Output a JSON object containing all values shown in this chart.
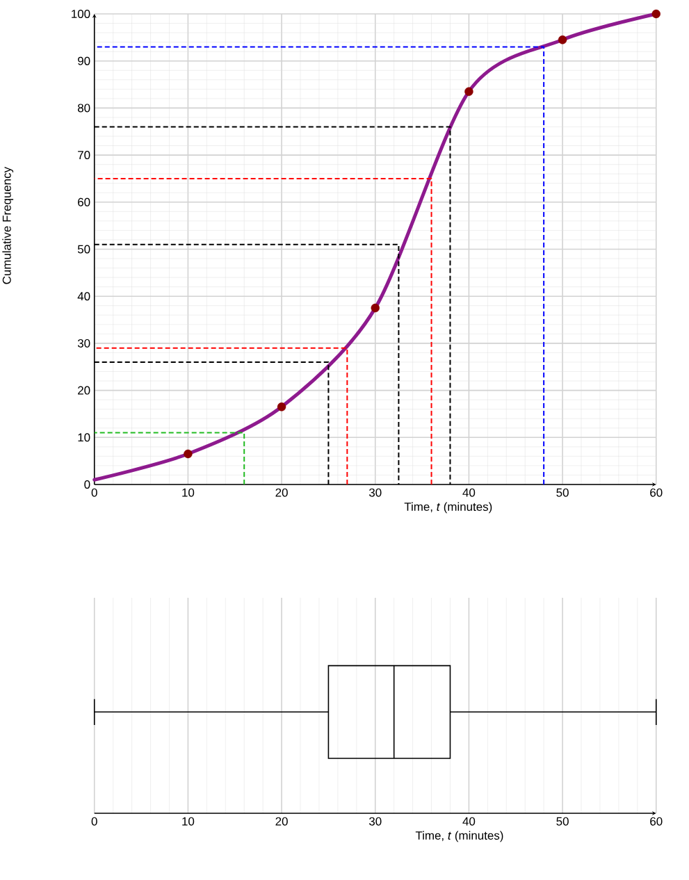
{
  "chart_data": [
    {
      "type": "line",
      "xlabel": "Time, *t* (minutes)",
      "ylabel": "Cumulative Frequency",
      "xlim": [
        0,
        60
      ],
      "ylim": [
        0,
        100
      ],
      "xticks": [
        0,
        10,
        20,
        30,
        40,
        50,
        60
      ],
      "yticks": [
        0,
        10,
        20,
        30,
        40,
        50,
        60,
        70,
        80,
        90,
        100
      ],
      "grid": true,
      "series": [
        {
          "type": "line",
          "x": [
            0,
            10,
            20,
            30,
            40,
            50,
            60
          ],
          "values": [
            1,
            6.5,
            16.5,
            37.5,
            83.5,
            94.5,
            100
          ],
          "color": "#8e1a8e",
          "marker": "none",
          "line_style": "solid"
        },
        {
          "type": "scatter",
          "x": [
            10,
            20,
            30,
            40,
            50,
            60
          ],
          "values": [
            6.5,
            16.5,
            37.5,
            83.5,
            94.5,
            100
          ],
          "color": "#8b0000",
          "marker": "circle"
        },
        {
          "type": "line",
          "x": [
            0,
            25,
            25
          ],
          "values": [
            26,
            26,
            0
          ],
          "color": "#000000",
          "marker": "none",
          "line_style": "dashed"
        },
        {
          "type": "line",
          "x": [
            0,
            32.5,
            32.5
          ],
          "values": [
            51,
            51,
            0
          ],
          "color": "#000000",
          "marker": "none",
          "line_style": "dashed"
        },
        {
          "type": "line",
          "x": [
            0,
            38,
            38
          ],
          "values": [
            76,
            76,
            0
          ],
          "color": "#000000",
          "marker": "none",
          "line_style": "dashed"
        },
        {
          "type": "line",
          "x": [
            27,
            27,
            0
          ],
          "values": [
            0,
            29,
            29
          ],
          "color": "#ff0000",
          "marker": "none",
          "line_style": "dashed"
        },
        {
          "type": "line",
          "x": [
            36,
            36,
            0
          ],
          "values": [
            0,
            65,
            65
          ],
          "color": "#ff0000",
          "marker": "none",
          "line_style": "dashed"
        },
        {
          "type": "line",
          "x": [
            16,
            16,
            0
          ],
          "values": [
            0,
            11,
            11
          ],
          "color": "#22bb22",
          "marker": "none",
          "line_style": "dashed"
        },
        {
          "type": "line",
          "x": [
            48,
            48,
            0
          ],
          "values": [
            0,
            93,
            93
          ],
          "color": "#0000ff",
          "marker": "none",
          "line_style": "dashed"
        }
      ]
    },
    {
      "type": "box",
      "orientation": "horizontal",
      "xlabel": "Time, *t* (minutes)",
      "xlim": [
        0,
        60
      ],
      "xticks": [
        0,
        10,
        20,
        30,
        40,
        50,
        60
      ],
      "grid": true,
      "tick_labels": "x",
      "categories": [
        null
      ],
      "boxes": [
        {
          "low": 0,
          "q1": 25,
          "median": 32,
          "q3": 38,
          "high": 60
        }
      ]
    }
  ]
}
